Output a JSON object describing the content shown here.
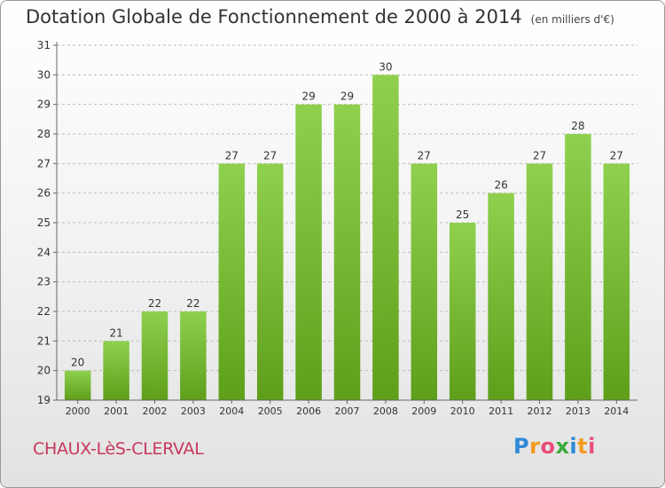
{
  "header": {
    "title": "Dotation Globale de Fonctionnement de 2000 à 2014",
    "subtitle": "(en milliers d'€)"
  },
  "footer": {
    "commune": "CHAUX-LèS-CLERVAL",
    "logo_letters": [
      "P",
      "r",
      "o",
      "x",
      "i",
      "t",
      "i"
    ]
  },
  "colors": {
    "bar_top": "#8fd14f",
    "bar_bottom": "#5e9f1a",
    "commune": "#c8385c"
  },
  "chart_data": {
    "type": "bar",
    "title": "Dotation Globale de Fonctionnement de 2000 à 2014",
    "subtitle": "(en milliers d'€)",
    "xlabel": "",
    "ylabel": "",
    "categories": [
      "2000",
      "2001",
      "2002",
      "2003",
      "2004",
      "2005",
      "2006",
      "2007",
      "2008",
      "2009",
      "2010",
      "2011",
      "2012",
      "2013",
      "2014"
    ],
    "values": [
      20,
      21,
      22,
      22,
      27,
      27,
      29,
      29,
      30,
      27,
      25,
      26,
      27,
      28,
      27
    ],
    "ylim": [
      19,
      31
    ],
    "yticks": [
      19,
      20,
      21,
      22,
      23,
      24,
      25,
      26,
      27,
      28,
      29,
      30,
      31
    ],
    "grid": true
  }
}
